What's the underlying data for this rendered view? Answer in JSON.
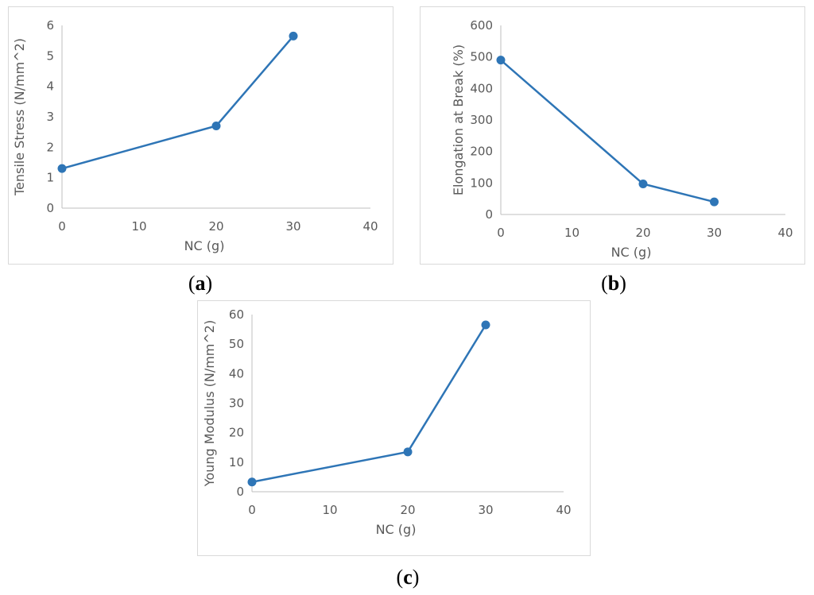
{
  "chart_data": [
    {
      "id": "a",
      "type": "line",
      "caption_letter": "a",
      "xlabel": "NC (g)",
      "ylabel": "Tensile Stress (N/mm^2)",
      "xlim": [
        0,
        40
      ],
      "ylim": [
        0,
        6
      ],
      "xticks": [
        0,
        10,
        20,
        30,
        40
      ],
      "yticks": [
        0,
        1,
        2,
        3,
        4,
        5,
        6
      ],
      "grid": false,
      "series": [
        {
          "x": [
            0,
            20,
            30
          ],
          "values": [
            1.3,
            2.7,
            5.65
          ],
          "color": "#2e75b6"
        }
      ]
    },
    {
      "id": "b",
      "type": "line",
      "caption_letter": "b",
      "xlabel": "NC (g)",
      "ylabel": "Elongation at Break (%)",
      "xlim": [
        0,
        40
      ],
      "ylim": [
        0,
        600
      ],
      "xticks": [
        0,
        10,
        20,
        30,
        40
      ],
      "yticks": [
        0,
        100,
        200,
        300,
        400,
        500,
        600
      ],
      "grid": false,
      "series": [
        {
          "x": [
            0,
            20,
            30
          ],
          "values": [
            490,
            97,
            40
          ],
          "color": "#2e75b6"
        }
      ]
    },
    {
      "id": "c",
      "type": "line",
      "caption_letter": "c",
      "xlabel": "NC (g)",
      "ylabel": "Young Modulus (N/mm^2)",
      "xlim": [
        0,
        40
      ],
      "ylim": [
        0,
        60
      ],
      "xticks": [
        0,
        10,
        20,
        30,
        40
      ],
      "yticks": [
        0,
        10,
        20,
        30,
        40,
        50,
        60
      ],
      "grid": false,
      "series": [
        {
          "x": [
            0,
            20,
            30
          ],
          "values": [
            3.3,
            13.5,
            56.5
          ],
          "color": "#2e75b6"
        }
      ]
    }
  ]
}
